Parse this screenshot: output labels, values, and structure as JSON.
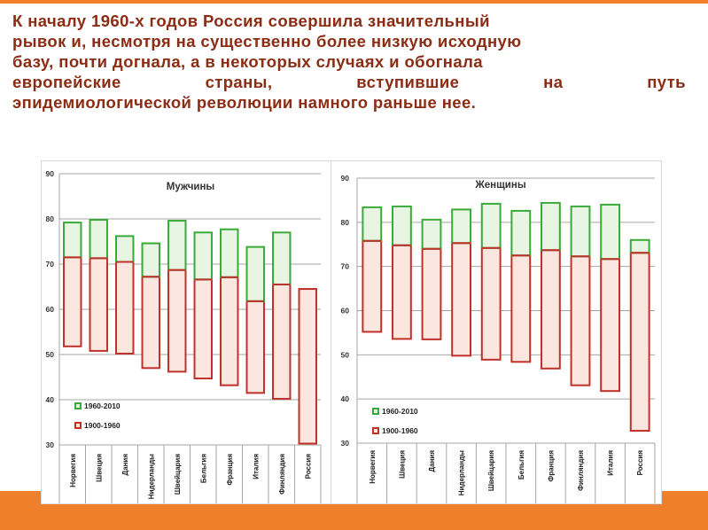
{
  "heading": {
    "lines": [
      "К началу 1960-х годов Россия совершила значительный",
      "рывок и, несмотря на существенно более низкую исходную",
      "базу, почти догнала, а в некоторых случаях и обогнала"
    ],
    "justified_words": [
      "европейские",
      "страны,",
      "вступившие",
      "на",
      "путь"
    ],
    "last_line": "эпидемиологической революции намного раньше нее."
  },
  "colors": {
    "accent_bar": "#f07f2c",
    "heading_text": "#8b2c13",
    "green_edge": "#3aaa3a",
    "green_fill": "#e8f5e2",
    "red_edge": "#c0312b",
    "red_fill": "#fbe7e0"
  },
  "chart_data": [
    {
      "type": "bar",
      "subtype": "floating-range",
      "title": "Мужчины",
      "ylim": [
        30,
        90
      ],
      "yticks": [
        "30",
        "40",
        "50",
        "60",
        "70",
        "80",
        "90"
      ],
      "grid": true,
      "legend": [
        "1960-2010",
        "1900-1960"
      ],
      "legend_position": "bottom-left",
      "categories": [
        "Норвегия",
        "Швеция",
        "Дания",
        "Нидерланды",
        "Швейцария",
        "Бельгия",
        "Франция",
        "Италия",
        "Финляндия",
        "Россия"
      ],
      "series": [
        {
          "name": "1960-2010",
          "low": [
            71.5,
            71.3,
            70.5,
            67.2,
            68.7,
            66.6,
            67.1,
            61.8,
            65.5,
            64.5
          ],
          "high": [
            79.2,
            79.8,
            76.2,
            74.6,
            79.6,
            77.0,
            77.7,
            73.8,
            77.0,
            64.5
          ]
        },
        {
          "name": "1900-1960",
          "low": [
            51.8,
            50.8,
            50.2,
            47.0,
            46.2,
            44.7,
            43.2,
            41.5,
            40.2,
            30.3
          ],
          "high": [
            71.5,
            71.3,
            70.5,
            67.2,
            68.7,
            66.6,
            67.1,
            61.8,
            65.5,
            64.5
          ]
        }
      ]
    },
    {
      "type": "bar",
      "subtype": "floating-range",
      "title": "Женщины",
      "ylim": [
        30,
        90
      ],
      "yticks": [
        "30",
        "40",
        "50",
        "60",
        "70",
        "80",
        "90"
      ],
      "grid": true,
      "legend": [
        "1960-2010",
        "1900-1960"
      ],
      "legend_position": "bottom-left",
      "categories": [
        "Норвегия",
        "Швеция",
        "Дания",
        "Нидерланды",
        "Швейцария",
        "Бельгия",
        "Франция",
        "Финляндия",
        "Италия",
        "Россия"
      ],
      "series": [
        {
          "name": "1960-2010",
          "low": [
            75.8,
            74.8,
            74.0,
            75.3,
            74.2,
            72.5,
            73.7,
            72.3,
            71.7,
            73.1
          ],
          "high": [
            83.4,
            83.6,
            80.6,
            82.9,
            84.2,
            82.6,
            84.4,
            83.6,
            84.0,
            76.0
          ]
        },
        {
          "name": "1900-1960",
          "low": [
            55.2,
            53.6,
            53.5,
            49.8,
            48.9,
            48.4,
            46.9,
            43.1,
            41.8,
            32.8
          ],
          "high": [
            75.8,
            74.8,
            74.0,
            75.3,
            74.2,
            72.5,
            73.7,
            72.3,
            71.7,
            73.1
          ]
        }
      ]
    }
  ]
}
